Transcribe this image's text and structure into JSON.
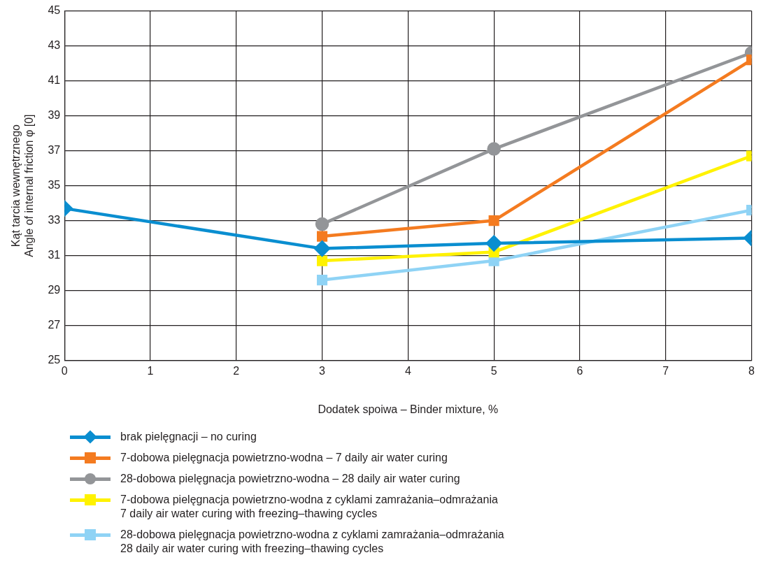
{
  "chart_data": {
    "type": "line",
    "xlabel": "Dodatek spoiwa – Binder mixture, %",
    "ylabel": "Kąt tarcia wewnętrznego\nAngle of internal friction φ [0]",
    "x": [
      0,
      3,
      5,
      8
    ],
    "xlim": [
      0,
      8
    ],
    "xticks": [
      0,
      1,
      2,
      3,
      4,
      5,
      6,
      7,
      8
    ],
    "ylim": [
      25,
      45
    ],
    "yticks": [
      25,
      27,
      29,
      31,
      33,
      35,
      37,
      39,
      41,
      43,
      45
    ],
    "grid": true,
    "legend": "bottom",
    "series": [
      {
        "name": "brak pielęgnacji – no curing",
        "color": "#0a8ed0",
        "marker": "diamond",
        "values": [
          33.7,
          31.4,
          31.7,
          32.0
        ]
      },
      {
        "name": "7-dobowa pielęgnacja powietrzno-wodna – 7 daily air water curing",
        "color": "#f47b20",
        "marker": "square",
        "values": [
          null,
          32.1,
          33.0,
          42.2
        ]
      },
      {
        "name": "28-dobowa pielęgnacja powietrzno-wodna – 28 daily air water curing",
        "color": "#939598",
        "marker": "circle",
        "values": [
          null,
          32.8,
          37.1,
          42.6
        ]
      },
      {
        "name": "7-dobowa pielęgnacja powietrzno-wodna z cyklami zamrażania–odmrażania\n7 daily air water curing with freezing–thawing cycles",
        "color": "#fff200",
        "marker": "square",
        "values": [
          null,
          30.7,
          31.2,
          36.7
        ]
      },
      {
        "name": "28-dobowa pielęgnacja powietrzno-wodna z cyklami zamrażania–odmrażania\n28 daily air water curing with freezing–thawing cycles",
        "color": "#8fd3f5",
        "marker": "square",
        "values": [
          null,
          29.6,
          30.7,
          33.6
        ]
      }
    ]
  }
}
